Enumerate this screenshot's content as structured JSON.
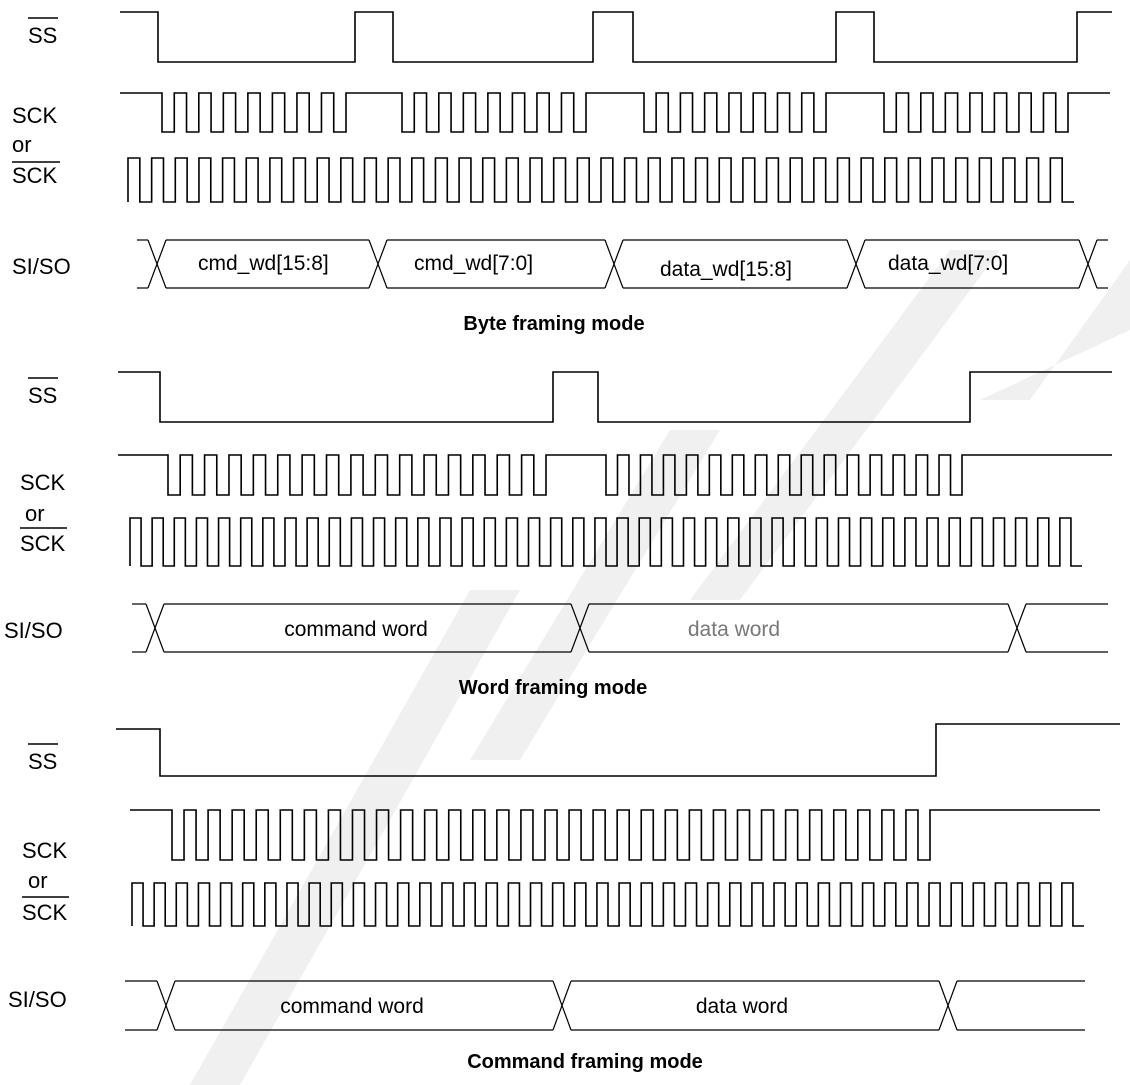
{
  "signal_names": {
    "ss": "SS",
    "sck": "SCK",
    "or": "or",
    "sck_inverted": "SCK",
    "bus": "SI/SO"
  },
  "byte_framing": {
    "title": "Byte framing mode",
    "fields": [
      "cmd_wd[15:8]",
      "cmd_wd[7:0]",
      "data_wd[15:8]",
      "data_wd[7:0]"
    ]
  },
  "word_framing": {
    "title": "Word framing mode",
    "fields": [
      "command word",
      "data word"
    ]
  },
  "command_framing": {
    "title": "Command framing mode",
    "fields": [
      "command word",
      "data word"
    ]
  },
  "colors": {
    "line": "#000000",
    "background": "#ffffff",
    "watermark": "#e6e6e6"
  }
}
